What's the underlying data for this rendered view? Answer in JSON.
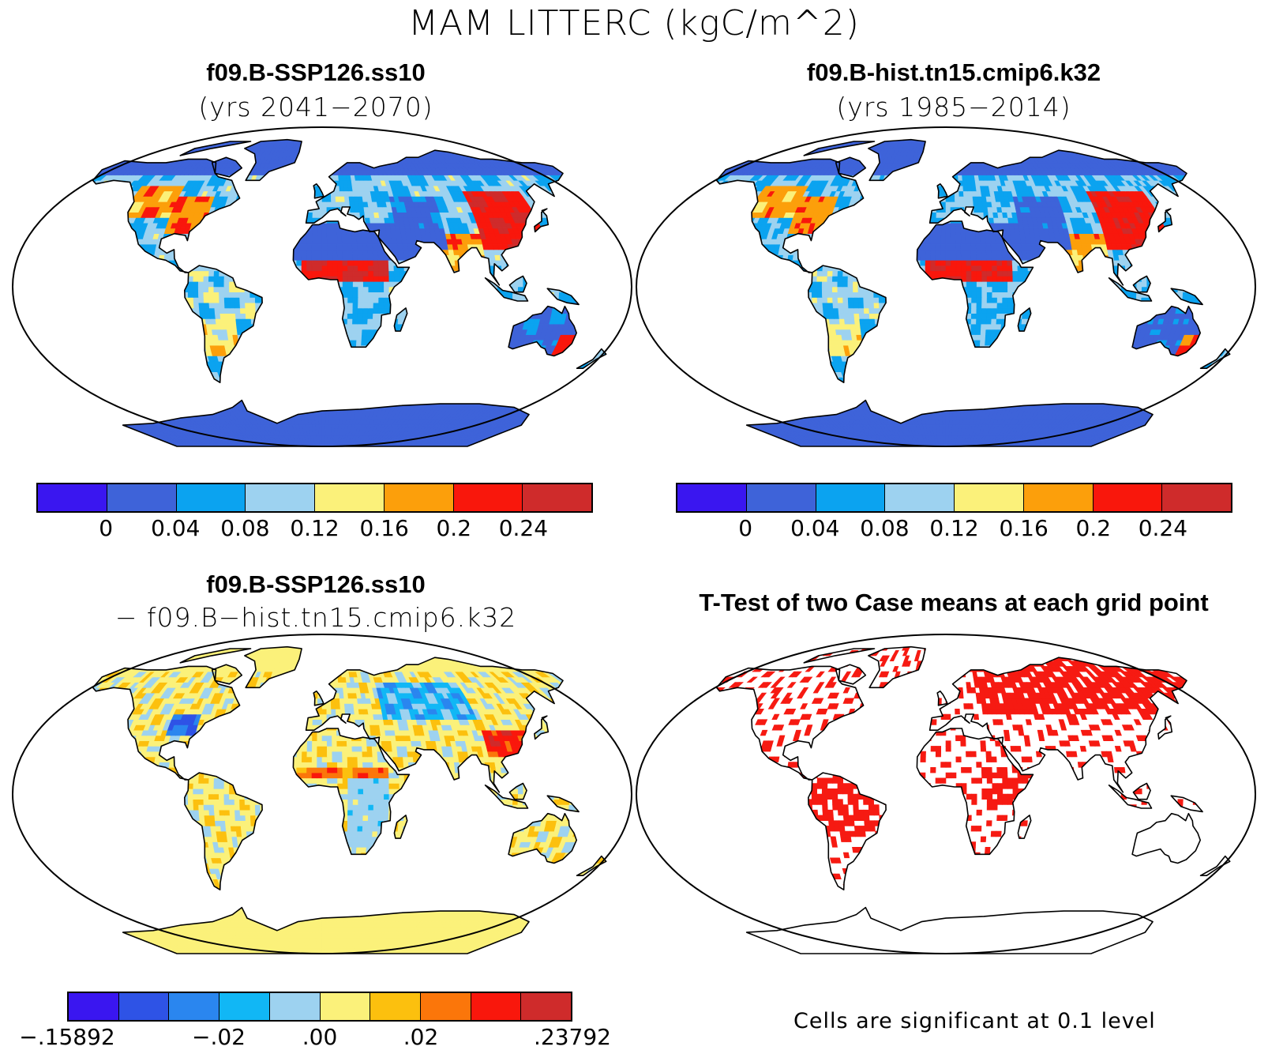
{
  "title": "MAM LITTERC (kgC/m^2)",
  "panels": {
    "top_left": {
      "title": "f09.B-SSP126.ss10",
      "subtitle": "(yrs 2041−2070)"
    },
    "top_right": {
      "title": "f09.B-hist.tn15.cmip6.k32",
      "subtitle": "(yrs 1985−2014)"
    },
    "bottom_left": {
      "title": "f09.B-SSP126.ss10",
      "subtitle": "− f09.B−hist.tn15.cmip6.k32"
    },
    "bottom_right": {
      "title": "T-Test of two Case means at each grid point"
    }
  },
  "colorbar_mean": {
    "colors": [
      "#3a16f0",
      "#3e63d9",
      "#0ba3f0",
      "#9dd2f0",
      "#fbf17a",
      "#fc9f0b",
      "#f9170c",
      "#cf2b2b"
    ],
    "labels": [
      "0",
      "0.04",
      "0.08",
      "0.12",
      "0.16",
      "0.2",
      "0.24"
    ]
  },
  "colorbar_diff": {
    "colors": [
      "#3a16f0",
      "#2e53e6",
      "#2a86ef",
      "#11b7f5",
      "#9dd2f0",
      "#fbf17a",
      "#fcc00e",
      "#fb760a",
      "#f9170c",
      "#cf2b2b"
    ],
    "labels": [
      ".15892",
      ".02",
      ".00",
      ".02",
      ".23792"
    ],
    "label_signs": [
      "−",
      "−",
      "",
      "",
      ""
    ]
  },
  "note": "Cells are significant at 0.1 level",
  "colors": {
    "significant": "#f61a12",
    "land_outline": "#000000",
    "ocean": "#ffffff"
  }
}
